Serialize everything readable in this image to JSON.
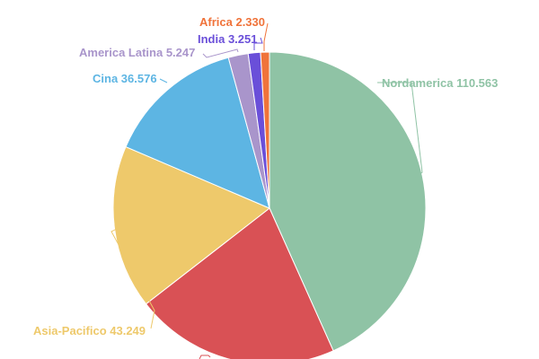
{
  "chart_data": {
    "type": "pie",
    "start": "top, clockwise",
    "slices": [
      {
        "label": "Nordamerica 110.563",
        "name": "Nordamerica",
        "value": 110.563,
        "color": "#8fc3a5"
      },
      {
        "label": "",
        "name": "",
        "value": 54.1,
        "color": "#d95155"
      },
      {
        "label": "Asia-Pacifico 43.249",
        "name": "Asia-Pacifico",
        "value": 43.249,
        "color": "#eec96b"
      },
      {
        "label": "Cina 36.576",
        "name": "Cina",
        "value": 36.576,
        "color": "#5db5e3"
      },
      {
        "label": "America Latina 5.247",
        "name": "America Latina",
        "value": 5.247,
        "color": "#a995cb"
      },
      {
        "label": "India 3.251",
        "name": "India",
        "value": 3.251,
        "color": "#6a4fd9"
      },
      {
        "label": "Africa 2.330",
        "name": "Africa",
        "value": 2.33,
        "color": "#f0733a"
      }
    ]
  }
}
